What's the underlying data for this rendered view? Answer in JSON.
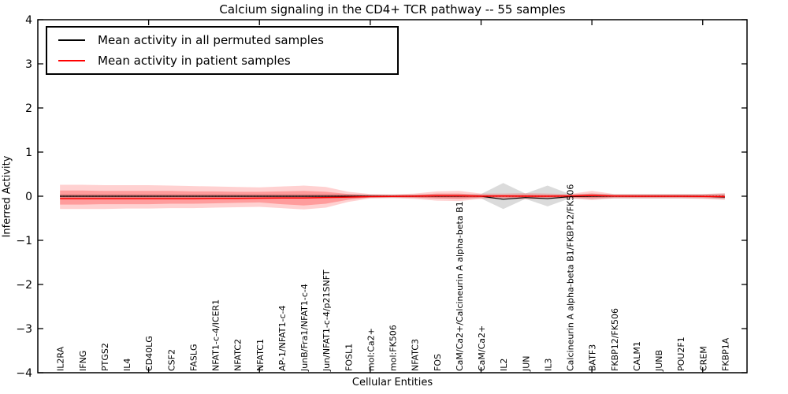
{
  "title": "Calcium signaling in the CD4+ TCR pathway -- 55 samples",
  "axes": {
    "xlabel": "Cellular Entities",
    "ylabel": "Inferred Activity",
    "ytick_labels": [
      "4",
      "3",
      "2",
      "1",
      "0",
      "−1",
      "−2",
      "−3",
      "−4"
    ],
    "ytick_values": [
      4,
      3,
      2,
      1,
      0,
      -1,
      -2,
      -3,
      -4
    ],
    "xtick_values": [
      5,
      10,
      15,
      20,
      25,
      30
    ]
  },
  "legend": {
    "items": [
      {
        "label": "Mean activity in all permuted samples",
        "color": "#000000"
      },
      {
        "label": "Mean activity in patient samples",
        "color": "#ff0000"
      }
    ]
  },
  "colors": {
    "patient_line": "#ff0000",
    "permuted_line": "#000000",
    "zero_line": "#000000",
    "red_band": "#ff0000",
    "gray_band": "#888888",
    "spine": "#000000"
  },
  "chart_data": {
    "type": "line",
    "title": "Calcium signaling in the CD4+ TCR pathway -- 55 samples",
    "xlabel": "Cellular Entities",
    "ylabel": "Inferred Activity",
    "ylim": [
      -4,
      4
    ],
    "xlim": [
      0,
      32
    ],
    "grid": false,
    "legend_position": "upper left",
    "categories": [
      "IL2RA",
      "IFNG",
      "PTGS2",
      "IL4",
      "CD40LG",
      "CSF2",
      "FASLG",
      "NFAT1-c-4/ICER1",
      "NFATC2",
      "NFATC1",
      "AP-1/NFAT1-c-4",
      "JunB/Fra1/NFAT1-c-4",
      "Jun/NFAT1-c-4/p21SNFT",
      "FOSL1",
      "mol:Ca2+",
      "mol:FK506",
      "NFATC3",
      "FOS",
      "CaM/Ca2+/Calcineurin A alpha-beta B1",
      "CaM/Ca2+",
      "IL2",
      "JUN",
      "IL3",
      "Calcineurin A alpha-beta B1/FKBP12/FK506",
      "BATF3",
      "FKBP12/FK506",
      "CALM1",
      "JUNB",
      "POU2F1",
      "CREM",
      "FKBP1A"
    ],
    "x": [
      1,
      2,
      3,
      4,
      5,
      6,
      7,
      8,
      9,
      10,
      11,
      12,
      13,
      14,
      15,
      16,
      17,
      18,
      19,
      20,
      21,
      22,
      23,
      24,
      25,
      26,
      27,
      28,
      29,
      30,
      31
    ],
    "series": [
      {
        "name": "Mean activity in all permuted samples",
        "values": [
          0,
          0,
          0,
          0,
          0,
          0,
          0,
          0,
          0,
          0,
          0,
          0,
          0,
          0,
          0,
          0,
          0,
          0,
          0,
          0,
          -0.07,
          -0.03,
          -0.055,
          -0.01,
          0,
          0,
          0,
          0,
          0,
          0,
          -0.02
        ]
      },
      {
        "name": "Mean activity in patient samples",
        "values": [
          -0.055,
          -0.055,
          -0.055,
          -0.055,
          -0.055,
          -0.055,
          -0.055,
          -0.05,
          -0.05,
          -0.045,
          -0.04,
          -0.04,
          -0.03,
          -0.02,
          -0.01,
          -0.005,
          0,
          0.01,
          0.01,
          0,
          0.005,
          0,
          0,
          0.005,
          0.015,
          0.005,
          0,
          0,
          0,
          -0.005,
          -0.01
        ]
      }
    ],
    "bands": [
      {
        "name": "permuted-std-band",
        "color": "#888888",
        "opacity": 0.3,
        "hi": [
          0.05,
          0.05,
          0.05,
          0.05,
          0.05,
          0.05,
          0.05,
          0.05,
          0.05,
          0.05,
          0.05,
          0.05,
          0.05,
          0.05,
          0.04,
          0.04,
          0.04,
          0.05,
          0.05,
          0.05,
          0.3,
          0.06,
          0.24,
          0.05,
          0.06,
          0.05,
          0.05,
          0.05,
          0.05,
          0.05,
          0.06
        ],
        "lo": [
          -0.05,
          -0.05,
          -0.05,
          -0.05,
          -0.05,
          -0.05,
          -0.05,
          -0.05,
          -0.05,
          -0.05,
          -0.05,
          -0.05,
          -0.05,
          -0.05,
          -0.04,
          -0.04,
          -0.04,
          -0.05,
          -0.05,
          -0.05,
          -0.29,
          -0.06,
          -0.23,
          -0.05,
          -0.06,
          -0.05,
          -0.05,
          -0.05,
          -0.05,
          -0.05,
          -0.07
        ]
      },
      {
        "name": "patient-std-band-outer",
        "color": "#ff0000",
        "opacity": 0.18,
        "hi": [
          0.26,
          0.26,
          0.25,
          0.25,
          0.25,
          0.24,
          0.23,
          0.22,
          0.21,
          0.2,
          0.22,
          0.24,
          0.21,
          0.1,
          0.05,
          0.04,
          0.06,
          0.11,
          0.12,
          0.06,
          0.06,
          0.07,
          0.06,
          0.05,
          0.12,
          0.05,
          0.05,
          0.05,
          0.05,
          0.05,
          0.07
        ],
        "lo": [
          -0.29,
          -0.29,
          -0.29,
          -0.28,
          -0.28,
          -0.27,
          -0.27,
          -0.26,
          -0.25,
          -0.24,
          -0.27,
          -0.3,
          -0.26,
          -0.13,
          -0.05,
          -0.04,
          -0.06,
          -0.1,
          -0.11,
          -0.06,
          -0.06,
          -0.07,
          -0.06,
          -0.05,
          -0.09,
          -0.05,
          -0.05,
          -0.05,
          -0.05,
          -0.06,
          -0.08
        ]
      },
      {
        "name": "patient-std-band-inner",
        "color": "#ff0000",
        "opacity": 0.25,
        "hi": [
          0.13,
          0.13,
          0.12,
          0.12,
          0.12,
          0.12,
          0.11,
          0.11,
          0.1,
          0.1,
          0.11,
          0.12,
          0.1,
          0.05,
          0.025,
          0.02,
          0.03,
          0.06,
          0.06,
          0.03,
          0.03,
          0.035,
          0.03,
          0.025,
          0.06,
          0.025,
          0.025,
          0.025,
          0.025,
          0.025,
          0.035
        ],
        "lo": [
          -0.19,
          -0.19,
          -0.18,
          -0.18,
          -0.18,
          -0.17,
          -0.17,
          -0.16,
          -0.15,
          -0.14,
          -0.18,
          -0.21,
          -0.17,
          -0.08,
          -0.025,
          -0.02,
          -0.03,
          -0.05,
          -0.06,
          -0.03,
          -0.03,
          -0.035,
          -0.03,
          -0.025,
          -0.045,
          -0.025,
          -0.025,
          -0.025,
          -0.025,
          -0.03,
          -0.04
        ]
      }
    ],
    "reference_lines": [
      {
        "name": "zero-line",
        "y": 0,
        "style": "dotted",
        "color": "#000000"
      }
    ]
  }
}
